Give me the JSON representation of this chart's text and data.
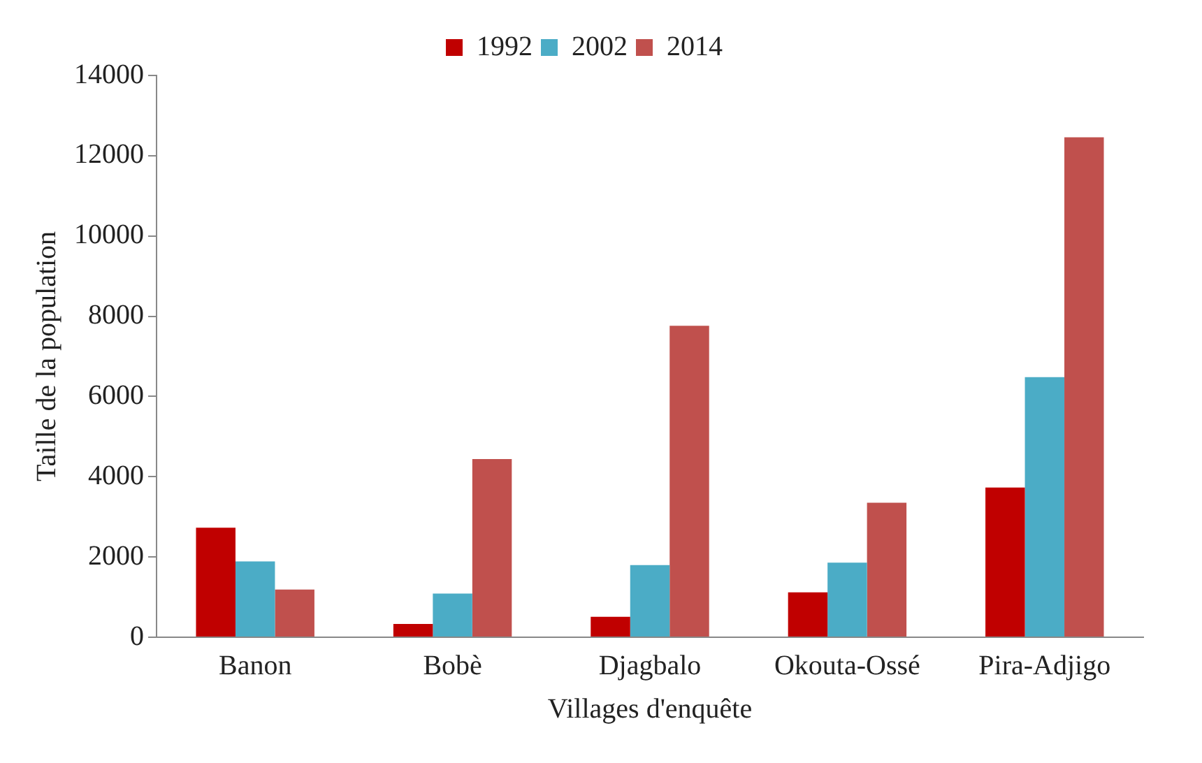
{
  "chart_data": {
    "type": "bar",
    "xlabel": "Villages d'enquête",
    "ylabel": "Taille de la population",
    "categories": [
      "Banon",
      "Bobè",
      "Djagbalo",
      "Okouta-Ossé",
      "Pira-Adjigo"
    ],
    "series": [
      {
        "name": "1992",
        "color": "#c00000",
        "values": [
          2730,
          330,
          510,
          1120,
          3730
        ]
      },
      {
        "name": "2002",
        "color": "#4bacc6",
        "values": [
          1890,
          1090,
          1800,
          1860,
          6480
        ]
      },
      {
        "name": "2014",
        "color": "#c0504d",
        "values": [
          1190,
          4440,
          7760,
          3350,
          12460
        ]
      }
    ],
    "ylim": [
      0,
      14000
    ],
    "yticks": [
      0,
      2000,
      4000,
      6000,
      8000,
      10000,
      12000,
      14000
    ],
    "grid": false,
    "legend": "top"
  }
}
